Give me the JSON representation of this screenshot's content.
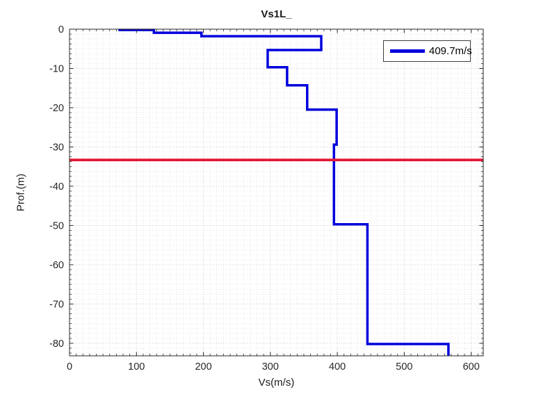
{
  "chart_data": {
    "type": "line",
    "title": "Vs1L_",
    "xlabel": "Vs(m/s)",
    "ylabel": "Prof.(m)",
    "xlim": [
      0,
      618
    ],
    "ylim": [
      -83.2,
      0
    ],
    "x_ticks": [
      0,
      100,
      200,
      300,
      400,
      500,
      600
    ],
    "y_ticks": [
      0,
      -10,
      -20,
      -30,
      -40,
      -50,
      -60,
      -70,
      -80
    ],
    "x_minor_step": 10,
    "y_minor_step": 1.25,
    "grid": "on",
    "minor_grid": "on",
    "axis_color": "#262626",
    "legend": {
      "position": "northeast",
      "entries": [
        {
          "label": "409.7m/s",
          "color": "#0000dd"
        }
      ]
    },
    "series": [
      {
        "name": "vs-step-profile",
        "style": "stairs",
        "color": "#0000dd",
        "line_width": 3.5,
        "points_vs_depth": [
          [
            73,
            -0.2
          ],
          [
            126,
            -0.2
          ],
          [
            126,
            -0.9
          ],
          [
            197,
            -0.9
          ],
          [
            197,
            -1.8
          ],
          [
            376,
            -1.8
          ],
          [
            376,
            -5.3
          ],
          [
            296,
            -5.3
          ],
          [
            296,
            -9.7
          ],
          [
            325,
            -9.7
          ],
          [
            325,
            -14.3
          ],
          [
            355,
            -14.3
          ],
          [
            355,
            -20.5
          ],
          [
            399,
            -20.5
          ],
          [
            399,
            -29.4
          ],
          [
            395,
            -29.4
          ],
          [
            395,
            -49.7
          ],
          [
            445,
            -49.7
          ],
          [
            445,
            -80.2
          ],
          [
            566,
            -80.2
          ],
          [
            566,
            -83.2
          ]
        ]
      },
      {
        "name": "depth-marker",
        "style": "hline",
        "color": "#e31837",
        "line_width": 3.8,
        "depth": -33.3
      }
    ]
  }
}
